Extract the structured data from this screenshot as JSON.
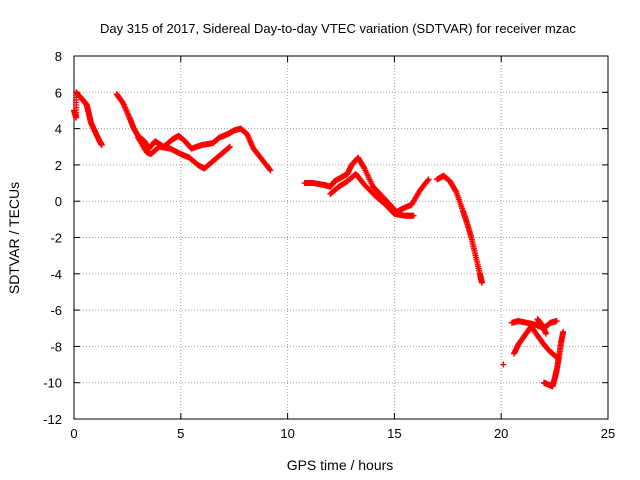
{
  "chart_data": {
    "type": "scatter",
    "title": "Day 315 of 2017, Sidereal Day-to-day VTEC variation (SDTVAR) for receiver mzac",
    "xlabel": "GPS time / hours",
    "ylabel": "SDTVAR / TECUs",
    "xlim": [
      0,
      25
    ],
    "ylim": [
      -12,
      8
    ],
    "xticks": [
      0,
      5,
      10,
      15,
      20,
      25
    ],
    "yticks": [
      -12,
      -10,
      -8,
      -6,
      -4,
      -2,
      0,
      2,
      4,
      6,
      8
    ],
    "grid": true,
    "marker": "+",
    "series": [
      {
        "name": "SDTVAR",
        "color": "#ff0000",
        "tracks": [
          [
            [
              0.0,
              5.0
            ],
            [
              0.1,
              4.6
            ],
            [
              0.1,
              6.0
            ],
            [
              0.4,
              5.6
            ],
            [
              0.6,
              5.3
            ],
            [
              0.7,
              4.8
            ],
            [
              0.8,
              4.3
            ],
            [
              1.0,
              3.8
            ],
            [
              1.2,
              3.3
            ],
            [
              1.3,
              3.1
            ]
          ],
          [
            [
              2.0,
              5.9
            ],
            [
              2.3,
              5.4
            ],
            [
              2.6,
              4.6
            ],
            [
              2.8,
              4.0
            ],
            [
              3.0,
              3.6
            ],
            [
              3.3,
              3.3
            ],
            [
              3.5,
              2.9
            ],
            [
              3.8,
              3.3
            ],
            [
              4.2,
              3.0
            ],
            [
              4.6,
              3.4
            ],
            [
              4.9,
              3.6
            ],
            [
              5.2,
              3.3
            ],
            [
              5.5,
              2.9
            ],
            [
              6.0,
              3.1
            ],
            [
              6.5,
              3.2
            ],
            [
              6.8,
              3.5
            ],
            [
              7.2,
              3.7
            ],
            [
              7.5,
              3.9
            ],
            [
              7.8,
              4.0
            ],
            [
              8.1,
              3.7
            ],
            [
              8.4,
              2.9
            ],
            [
              8.8,
              2.3
            ],
            [
              9.2,
              1.7
            ]
          ],
          [
            [
              3.0,
              3.5
            ],
            [
              3.4,
              2.7
            ],
            [
              3.6,
              2.6
            ],
            [
              4.0,
              3.0
            ],
            [
              4.5,
              2.9
            ],
            [
              5.0,
              2.6
            ],
            [
              5.4,
              2.4
            ],
            [
              5.8,
              2.0
            ],
            [
              6.1,
              1.8
            ],
            [
              6.5,
              2.2
            ],
            [
              6.9,
              2.6
            ],
            [
              7.3,
              3.0
            ]
          ],
          [
            [
              10.8,
              1.0
            ],
            [
              11.2,
              1.0
            ],
            [
              11.7,
              0.9
            ],
            [
              12.0,
              0.8
            ],
            [
              12.2,
              1.1
            ],
            [
              12.5,
              1.3
            ],
            [
              12.8,
              1.5
            ],
            [
              13.0,
              2.0
            ],
            [
              13.3,
              2.4
            ],
            [
              13.6,
              1.8
            ],
            [
              14.0,
              0.8
            ],
            [
              14.4,
              0.3
            ],
            [
              14.8,
              -0.2
            ],
            [
              15.1,
              -0.6
            ],
            [
              15.4,
              -0.4
            ],
            [
              15.8,
              -0.2
            ],
            [
              16.2,
              0.6
            ],
            [
              16.6,
              1.2
            ]
          ],
          [
            [
              12.0,
              0.4
            ],
            [
              12.4,
              0.8
            ],
            [
              12.8,
              1.1
            ],
            [
              13.2,
              1.5
            ],
            [
              13.6,
              0.9
            ],
            [
              14.1,
              0.3
            ],
            [
              14.6,
              -0.2
            ],
            [
              15.0,
              -0.7
            ],
            [
              15.5,
              -0.8
            ],
            [
              15.9,
              -0.8
            ]
          ],
          [
            [
              17.0,
              1.2
            ],
            [
              17.3,
              1.4
            ],
            [
              17.6,
              1.1
            ],
            [
              17.9,
              0.5
            ],
            [
              18.2,
              -0.5
            ],
            [
              18.4,
              -1.2
            ],
            [
              18.6,
              -2.0
            ],
            [
              18.8,
              -3.0
            ],
            [
              19.0,
              -4.0
            ],
            [
              19.1,
              -4.5
            ]
          ],
          [
            [
              20.1,
              -9.0
            ]
          ],
          [
            [
              20.5,
              -6.7
            ],
            [
              20.8,
              -6.6
            ],
            [
              21.2,
              -6.7
            ],
            [
              21.6,
              -6.8
            ],
            [
              22.0,
              -7.0
            ],
            [
              22.3,
              -6.7
            ],
            [
              22.6,
              -6.6
            ]
          ],
          [
            [
              20.6,
              -8.4
            ],
            [
              20.8,
              -7.9
            ],
            [
              21.1,
              -7.4
            ],
            [
              21.4,
              -6.9
            ],
            [
              21.7,
              -7.4
            ],
            [
              22.0,
              -7.9
            ],
            [
              22.3,
              -8.3
            ],
            [
              22.6,
              -8.6
            ]
          ],
          [
            [
              21.7,
              -6.5
            ],
            [
              21.9,
              -6.8
            ],
            [
              22.1,
              -7.3
            ]
          ],
          [
            [
              22.0,
              -10.0
            ],
            [
              22.2,
              -10.1
            ],
            [
              22.4,
              -10.2
            ],
            [
              22.5,
              -9.8
            ],
            [
              22.6,
              -9.3
            ],
            [
              22.7,
              -8.6
            ],
            [
              22.8,
              -7.8
            ],
            [
              22.9,
              -7.2
            ]
          ]
        ]
      }
    ]
  }
}
